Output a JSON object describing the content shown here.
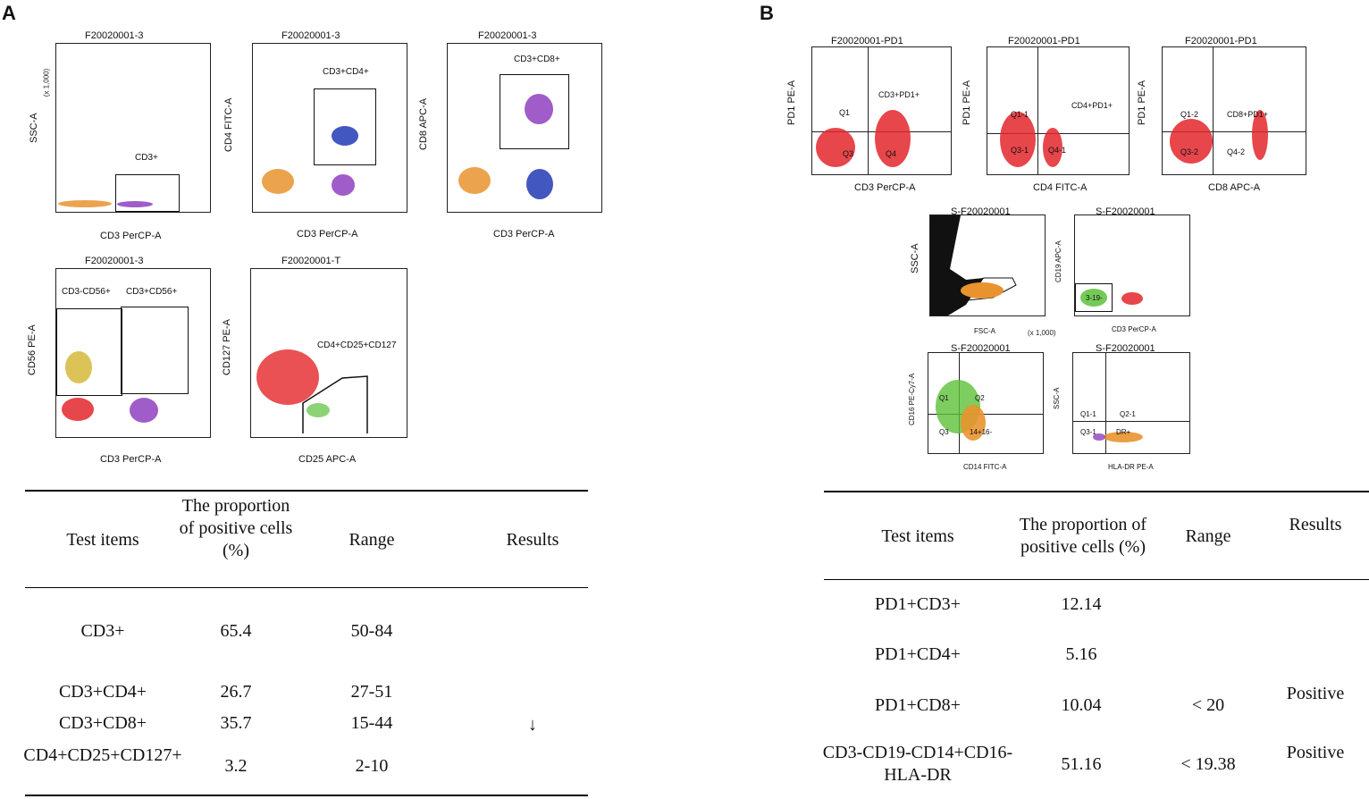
{
  "panels": {
    "a_label": "A",
    "b_label": "B"
  },
  "colors": {
    "red": "#e3262b",
    "orange": "#e9932f",
    "blue": "#2239b5",
    "purple": "#8f3fbf",
    "green": "#5cc13a",
    "yellow": "#d6b93a"
  },
  "a_plots": [
    {
      "title": "F20020001-3",
      "xlabel": "CD3 PerCP-A",
      "ylabel": "SSC-A",
      "yunit": "(x 1,000)",
      "gate": "CD3+"
    },
    {
      "title": "F20020001-3",
      "xlabel": "CD3 PerCP-A",
      "ylabel": "CD4 FITC-A",
      "gate": "CD3+CD4+"
    },
    {
      "title": "F20020001-3",
      "xlabel": "CD3 PerCP-A",
      "ylabel": "CD8 APC-A",
      "gate": "CD3+CD8+"
    },
    {
      "title": "F20020001-3",
      "xlabel": "CD3 PerCP-A",
      "ylabel": "CD56 PE-A",
      "gate1": "CD3-CD56+",
      "gate2": "CD3+CD56+"
    },
    {
      "title": "F20020001-T",
      "xlabel": "CD25 APC-A",
      "ylabel": "CD127 PE-A",
      "gate": "CD4+CD25+CD127"
    }
  ],
  "b_plots": [
    {
      "title": "F20020001-PD1",
      "xlabel": "CD3 PerCP-A",
      "ylabel": "PD1 PE-A",
      "q1": "Q1",
      "q2": "CD3+PD1+",
      "q3": "Q3",
      "q4": "Q4"
    },
    {
      "title": "F20020001-PD1",
      "xlabel": "CD4 FITC-A",
      "ylabel": "PD1 PE-A",
      "q1": "Q1-1",
      "q2": "CD4+PD1+",
      "q3": "Q3-1",
      "q4": "Q4-1"
    },
    {
      "title": "F20020001-PD1",
      "xlabel": "CD8 APC-A",
      "ylabel": "PD1 PE-A",
      "q1": "Q1-2",
      "q2": "CD8+PD1+",
      "q3": "Q3-2",
      "q4": "Q4-2"
    },
    {
      "title": "S-F20020001",
      "xlabel": "FSC-A",
      "ylabel": "SSC-A",
      "unit": "(x 1,000)"
    },
    {
      "title": "S-F20020001",
      "xlabel": "CD3 PerCP-A",
      "ylabel": "CD19 APC-A",
      "gate": "3-19-"
    },
    {
      "title": "S-F20020001",
      "xlabel": "CD14 FITC-A",
      "ylabel": "CD16 PE-Cy7-A",
      "q1": "Q1",
      "q2": "Q2",
      "q3": "Q3",
      "q4": "14+16-"
    },
    {
      "title": "S-F20020001",
      "xlabel": "HLA-DR PE-A",
      "ylabel": "SSC-A",
      "q1": "Q1-1",
      "q2": "Q2-1",
      "q3": "Q3-1",
      "q4": "DR+"
    }
  ],
  "table_a": {
    "headers": {
      "test": "Test items",
      "prop": "The proportion of positive cells (%)",
      "range": "Range",
      "results": "Results"
    },
    "rows": [
      {
        "item": "CD3+",
        "prop": "65.4",
        "range": "50-84",
        "result": ""
      },
      {
        "item": "CD3+CD4+",
        "prop": "26.7",
        "range": "27-51",
        "result": ""
      },
      {
        "item": "CD3+CD8+",
        "prop": "35.7",
        "range": "15-44",
        "result": "↓"
      },
      {
        "item": "CD4+CD25+CD127+",
        "prop": "3.2",
        "range": "2-10",
        "result": ""
      }
    ]
  },
  "table_b": {
    "headers": {
      "test": "Test items",
      "prop": "The proportion of positive cells (%)",
      "range": "Range",
      "results": "Results"
    },
    "rows": [
      {
        "item": "PD1+CD3+",
        "prop": "12.14",
        "range": "",
        "result": ""
      },
      {
        "item": "PD1+CD4+",
        "prop": "5.16",
        "range": "",
        "result": ""
      },
      {
        "item": "PD1+CD8+",
        "prop": "10.04",
        "range": "< 20",
        "result": "Positive"
      },
      {
        "item": "CD3-CD19-CD14+CD16-HLA-DR",
        "prop": "51.16",
        "range": "< 19.38",
        "result": "Positive"
      }
    ]
  }
}
